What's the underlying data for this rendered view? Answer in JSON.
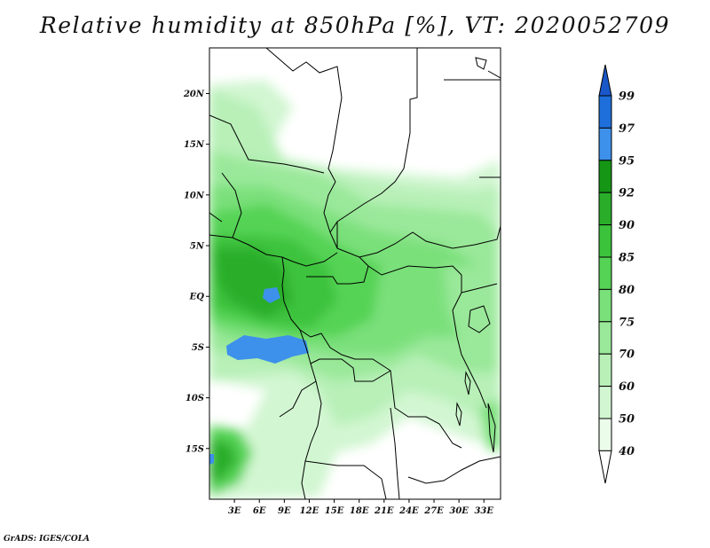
{
  "title": "Relative humidity at 850hPa [%], VT: 2020052709",
  "credit": "GrADS: IGES/COLA",
  "map": {
    "lon_range": [
      0,
      35
    ],
    "lat_range": [
      -20,
      24.5
    ],
    "lon_ticks": [
      "3E",
      "6E",
      "9E",
      "12E",
      "15E",
      "18E",
      "21E",
      "24E",
      "27E",
      "30E",
      "33E"
    ],
    "lat_ticks": [
      "20N",
      "15N",
      "10N",
      "5N",
      "EQ",
      "5S",
      "10S",
      "15S"
    ]
  },
  "colorbar": {
    "levels": [
      "99",
      "97",
      "95",
      "92",
      "90",
      "85",
      "80",
      "75",
      "70",
      "60",
      "50",
      "40"
    ],
    "colors": [
      "#1a57c9",
      "#1e6fdb",
      "#3d91eb",
      "#159615",
      "#2aae2a",
      "#3cc33c",
      "#55d355",
      "#7ae07a",
      "#9ae89a",
      "#b8f0b8",
      "#d2f6d2",
      "#ebfceb"
    ]
  }
}
